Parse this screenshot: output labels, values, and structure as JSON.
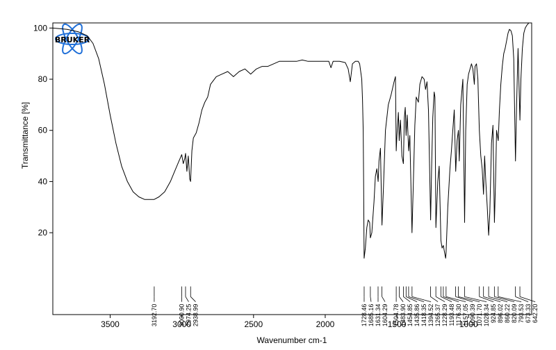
{
  "chart_data": {
    "type": "line",
    "title": "",
    "xlabel": "Wavenumber cm-1",
    "ylabel": "Transmittance [%]",
    "x_reversed": true,
    "xlim": [
      3900,
      560
    ],
    "ylim": [
      -12,
      102
    ],
    "x_ticks": [
      3500,
      3000,
      2500,
      2000,
      1500,
      1000
    ],
    "y_ticks": [
      20,
      40,
      60,
      80,
      100
    ],
    "grid": false,
    "logo": {
      "text": "BRUKER",
      "color": "#1f6fd8"
    },
    "line_color": "#000000",
    "series": [
      {
        "points": [
          [
            3900,
            100
          ],
          [
            3800,
            99.5
          ],
          [
            3720,
            98.5
          ],
          [
            3660,
            97
          ],
          [
            3620,
            94
          ],
          [
            3580,
            88
          ],
          [
            3540,
            78
          ],
          [
            3500,
            66
          ],
          [
            3460,
            55
          ],
          [
            3420,
            46
          ],
          [
            3380,
            40
          ],
          [
            3340,
            36
          ],
          [
            3300,
            34
          ],
          [
            3260,
            33
          ],
          [
            3220,
            33
          ],
          [
            3193,
            33
          ],
          [
            3160,
            34
          ],
          [
            3120,
            36
          ],
          [
            3080,
            40
          ],
          [
            3050,
            44
          ],
          [
            3020,
            48
          ],
          [
            3001,
            50.5
          ],
          [
            2990,
            47
          ],
          [
            2980,
            49
          ],
          [
            2974,
            51
          ],
          [
            2965,
            44
          ],
          [
            2955,
            50
          ],
          [
            2945,
            41
          ],
          [
            2939,
            40
          ],
          [
            2930,
            52
          ],
          [
            2920,
            57
          ],
          [
            2900,
            59
          ],
          [
            2880,
            63
          ],
          [
            2860,
            68
          ],
          [
            2840,
            71
          ],
          [
            2820,
            73
          ],
          [
            2800,
            78
          ],
          [
            2760,
            81
          ],
          [
            2720,
            82
          ],
          [
            2680,
            83
          ],
          [
            2640,
            81
          ],
          [
            2600,
            83
          ],
          [
            2560,
            84
          ],
          [
            2520,
            82
          ],
          [
            2480,
            84
          ],
          [
            2440,
            85
          ],
          [
            2400,
            85
          ],
          [
            2360,
            86
          ],
          [
            2320,
            87
          ],
          [
            2280,
            87
          ],
          [
            2240,
            87
          ],
          [
            2200,
            87
          ],
          [
            2160,
            87.5
          ],
          [
            2120,
            87
          ],
          [
            2080,
            87
          ],
          [
            2040,
            87
          ],
          [
            2000,
            87
          ],
          [
            1975,
            87
          ],
          [
            1960,
            84.5
          ],
          [
            1945,
            87
          ],
          [
            1900,
            87
          ],
          [
            1860,
            86.5
          ],
          [
            1840,
            84
          ],
          [
            1825,
            79
          ],
          [
            1810,
            86
          ],
          [
            1790,
            87
          ],
          [
            1770,
            87
          ],
          [
            1760,
            86
          ],
          [
            1745,
            80
          ],
          [
            1740,
            72
          ],
          [
            1735,
            60
          ],
          [
            1732,
            40
          ],
          [
            1729,
            10
          ],
          [
            1720,
            14
          ],
          [
            1710,
            22
          ],
          [
            1700,
            25
          ],
          [
            1690,
            24
          ],
          [
            1685,
            18
          ],
          [
            1675,
            20
          ],
          [
            1660,
            32
          ],
          [
            1650,
            42
          ],
          [
            1640,
            45
          ],
          [
            1631,
            40
          ],
          [
            1625,
            48
          ],
          [
            1615,
            53
          ],
          [
            1604,
            23
          ],
          [
            1595,
            36
          ],
          [
            1580,
            60
          ],
          [
            1560,
            70
          ],
          [
            1540,
            74
          ],
          [
            1520,
            79
          ],
          [
            1510,
            81
          ],
          [
            1505,
            52
          ],
          [
            1500,
            58
          ],
          [
            1490,
            67
          ],
          [
            1484,
            56
          ],
          [
            1475,
            64
          ],
          [
            1465,
            50
          ],
          [
            1455,
            47
          ],
          [
            1448,
            65
          ],
          [
            1442,
            69
          ],
          [
            1436,
            58
          ],
          [
            1428,
            66
          ],
          [
            1418,
            52
          ],
          [
            1410,
            58
          ],
          [
            1395,
            20
          ],
          [
            1385,
            40
          ],
          [
            1375,
            62
          ],
          [
            1365,
            73
          ],
          [
            1350,
            71
          ],
          [
            1340,
            78
          ],
          [
            1325,
            81
          ],
          [
            1310,
            80
          ],
          [
            1300,
            76
          ],
          [
            1290,
            79
          ],
          [
            1280,
            68
          ],
          [
            1265,
            25
          ],
          [
            1258,
            45
          ],
          [
            1250,
            65
          ],
          [
            1240,
            75
          ],
          [
            1235,
            73
          ],
          [
            1228,
            22
          ],
          [
            1215,
            40
          ],
          [
            1205,
            46
          ],
          [
            1193,
            17
          ],
          [
            1185,
            14
          ],
          [
            1176,
            15
          ],
          [
            1170,
            13
          ],
          [
            1160,
            10
          ],
          [
            1157,
            12
          ],
          [
            1145,
            30
          ],
          [
            1130,
            45
          ],
          [
            1120,
            52
          ],
          [
            1110,
            60
          ],
          [
            1100,
            68
          ],
          [
            1090,
            44
          ],
          [
            1080,
            56
          ],
          [
            1071,
            60
          ],
          [
            1065,
            48
          ],
          [
            1055,
            70
          ],
          [
            1040,
            80
          ],
          [
            1028,
            24
          ],
          [
            1020,
            60
          ],
          [
            1010,
            78
          ],
          [
            1000,
            82
          ],
          [
            990,
            84
          ],
          [
            980,
            86
          ],
          [
            970,
            84
          ],
          [
            960,
            78
          ],
          [
            955,
            85
          ],
          [
            945,
            86
          ],
          [
            935,
            80
          ],
          [
            925,
            60
          ],
          [
            915,
            50
          ],
          [
            905,
            45
          ],
          [
            896,
            35
          ],
          [
            888,
            50
          ],
          [
            880,
            40
          ],
          [
            870,
            30
          ],
          [
            860,
            19
          ],
          [
            852,
            28
          ],
          [
            840,
            55
          ],
          [
            830,
            62
          ],
          [
            820,
            24
          ],
          [
            812,
            40
          ],
          [
            805,
            60
          ],
          [
            793,
            56
          ],
          [
            785,
            68
          ],
          [
            775,
            78
          ],
          [
            765,
            85
          ],
          [
            755,
            90
          ],
          [
            745,
            92
          ],
          [
            735,
            95
          ],
          [
            725,
            98
          ],
          [
            715,
            99.5
          ],
          [
            705,
            99
          ],
          [
            695,
            97
          ],
          [
            685,
            88
          ],
          [
            673,
            48
          ],
          [
            665,
            70
          ],
          [
            655,
            92
          ],
          [
            642,
            64
          ],
          [
            635,
            80
          ],
          [
            625,
            92
          ],
          [
            615,
            98
          ],
          [
            605,
            100
          ],
          [
            595,
            101
          ],
          [
            580,
            102
          ]
        ]
      }
    ],
    "peak_labels": [
      "3192.70",
      "3000.90",
      "2974.25",
      "2938.99",
      "1728.46",
      "1685.16",
      "1631.34",
      "1604.29",
      "1504.78",
      "1483.90",
      "1454.85",
      "1435.86",
      "1418.35",
      "1394.52",
      "1265.37",
      "1228.29",
      "1193.48",
      "1176.30",
      "1157.05",
      "1090.39",
      "1071.70",
      "1028.34",
      "924.85",
      "896.02",
      "860.22",
      "820.09",
      "793.53",
      "673.33",
      "642.20"
    ]
  }
}
